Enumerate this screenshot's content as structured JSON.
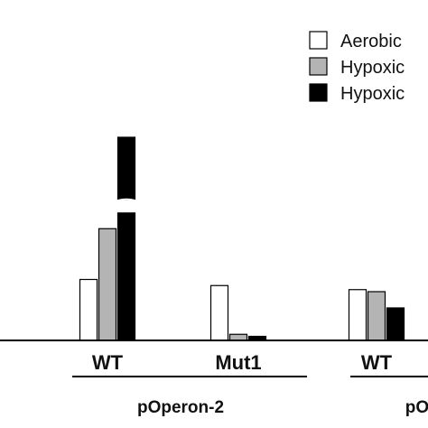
{
  "chart_data": {
    "type": "bar",
    "title": "",
    "xlabel": "",
    "ylabel": "",
    "ylim": [
      0,
      100
    ],
    "axis_break": [
      63,
      69
    ],
    "categories": [
      "WT",
      "Mut1",
      "WT"
    ],
    "groups": [
      {
        "label": "pOperon-2",
        "categories": [
          0,
          1
        ]
      },
      {
        "label": "pO",
        "categories": [
          2
        ]
      }
    ],
    "series": [
      {
        "name": "Aerobic",
        "color": "#ffffff",
        "values": [
          30,
          27,
          25
        ]
      },
      {
        "name": "Hypoxic",
        "color": "#b4b4b4",
        "values": [
          55,
          3,
          24
        ]
      },
      {
        "name": "Hypoxic",
        "color": "#000000",
        "values": [
          100,
          2,
          16
        ]
      }
    ],
    "legend": {
      "position": "top-right"
    }
  }
}
